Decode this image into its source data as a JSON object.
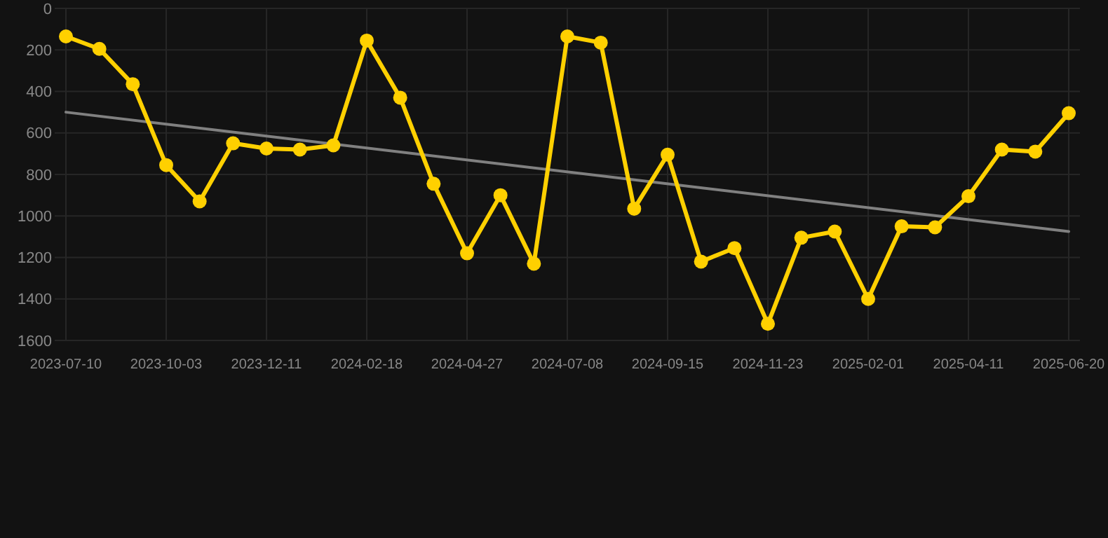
{
  "chart_data": {
    "type": "line",
    "categories": [
      "2023-07-10",
      null,
      null,
      "2023-10-03",
      null,
      null,
      "2023-12-11",
      null,
      null,
      "2024-02-18",
      null,
      null,
      "2024-04-27",
      null,
      null,
      "2024-07-08",
      null,
      null,
      "2024-09-15",
      null,
      null,
      "2024-11-23",
      null,
      null,
      "2025-02-01",
      null,
      null,
      "2025-04-11",
      null,
      null,
      "2025-06-20"
    ],
    "series": [
      {
        "color": "#ffd000",
        "marker": "circle",
        "values": [
          135,
          195,
          365,
          755,
          930,
          650,
          675,
          680,
          660,
          155,
          430,
          845,
          1180,
          900,
          1230,
          135,
          165,
          965,
          705,
          1220,
          1155,
          1520,
          1105,
          1075,
          1400,
          1050,
          1055,
          905,
          680,
          690,
          505
        ]
      },
      {
        "color": "#808080",
        "marker": "none",
        "values": [
          500,
          null,
          null,
          null,
          null,
          null,
          null,
          null,
          null,
          null,
          null,
          null,
          null,
          null,
          null,
          null,
          null,
          null,
          null,
          null,
          null,
          null,
          null,
          null,
          null,
          null,
          null,
          null,
          null,
          null,
          1075
        ]
      }
    ],
    "ylim": [
      1600,
      0
    ],
    "yticks": [
      0,
      200,
      400,
      600,
      800,
      1000,
      1200,
      1400,
      1600
    ],
    "grid": true
  }
}
